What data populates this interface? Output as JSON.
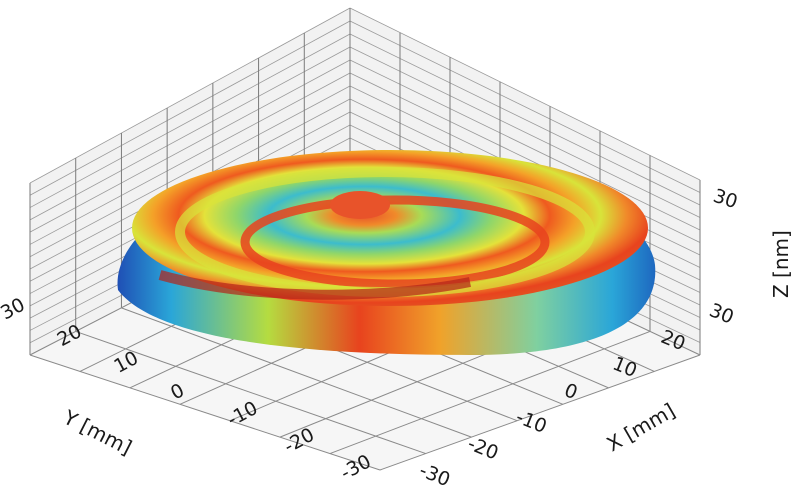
{
  "chart_data": {
    "type": "surface3d",
    "title": "",
    "description": "3D surface topography of a circular sample showing concentric ring (spiral-like) height variations",
    "xlabel": "X [mm]",
    "ylabel": "Y [mm]",
    "zlabel": "Z [nm]",
    "x_ticks": [
      "-30",
      "-20",
      "-10",
      "0",
      "10",
      "20",
      "30"
    ],
    "y_ticks": [
      "-30",
      "-20",
      "-10",
      "0",
      "10",
      "20",
      "30"
    ],
    "z_ticks": [
      "30"
    ],
    "xlim": [
      -35,
      35
    ],
    "ylim": [
      -35,
      35
    ],
    "zlim": [
      0,
      40
    ],
    "grid": true,
    "colormap": "jet",
    "colormap_stops": [
      "#1f4fb5",
      "#2aa6d8",
      "#7fd0a0",
      "#d8e43a",
      "#f4a128",
      "#e8431e",
      "#b3231a"
    ],
    "rings": [
      {
        "radius_frac": 1.0,
        "height": "low",
        "color": "#2aa6d8"
      },
      {
        "radius_frac": 0.9,
        "height": "high",
        "color": "#e8431e"
      },
      {
        "radius_frac": 0.72,
        "height": "mid",
        "color": "#d8e43a"
      },
      {
        "radius_frac": 0.6,
        "height": "high",
        "color": "#ef5a1f"
      },
      {
        "radius_frac": 0.45,
        "height": "mid",
        "color": "#a8dc56"
      },
      {
        "radius_frac": 0.3,
        "height": "low",
        "color": "#38b8d0"
      },
      {
        "radius_frac": 0.12,
        "height": "peak",
        "color": "#e8532a"
      }
    ],
    "legend": null
  }
}
